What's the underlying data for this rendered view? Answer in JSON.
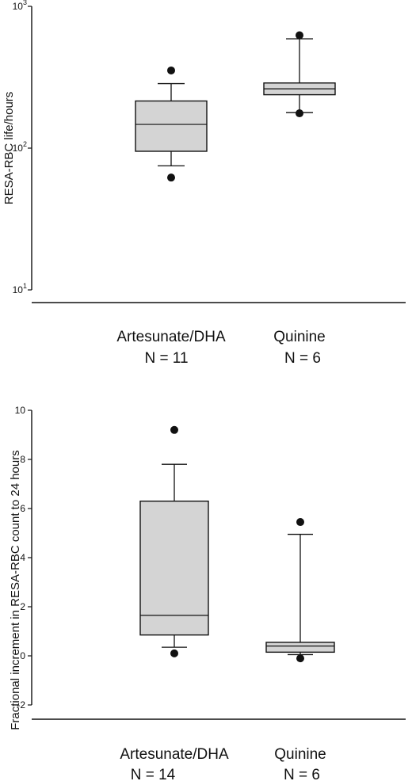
{
  "chart_data": [
    {
      "type": "box",
      "ylabel": "RESA-RBC life/hours",
      "yscale": "log",
      "ylim": [
        10,
        1000
      ],
      "yticks": [
        {
          "value": 10,
          "base": "10",
          "exp": "1"
        },
        {
          "value": 100,
          "base": "10",
          "exp": "2"
        },
        {
          "value": 1000,
          "base": "10",
          "exp": "3"
        }
      ],
      "groups": [
        {
          "name": "Artesunate/DHA",
          "n_label": "N = 11",
          "min": 75,
          "q1": 95,
          "median": 147,
          "q3": 215,
          "max": 285,
          "outliers": [
            353,
            62
          ]
        },
        {
          "name": "Quinine",
          "n_label": "N = 6",
          "min": 178,
          "q1": 238,
          "median": 262,
          "q3": 288,
          "max": 590,
          "outliers": [
            625,
            176
          ]
        }
      ]
    },
    {
      "type": "box",
      "ylabel": "Fractional increment in RESA-RBC count to 24 hours",
      "yscale": "linear",
      "ylim": [
        -2,
        10
      ],
      "yticks": [
        {
          "value": -2,
          "label": "-2"
        },
        {
          "value": 0,
          "label": "0"
        },
        {
          "value": 2,
          "label": "2"
        },
        {
          "value": 4,
          "label": "4"
        },
        {
          "value": 6,
          "label": "6"
        },
        {
          "value": 8,
          "label": "8"
        },
        {
          "value": 10,
          "label": "10"
        }
      ],
      "groups": [
        {
          "name": "Artesunate/DHA",
          "n_label": "N = 14",
          "min": 0.35,
          "q1": 0.85,
          "median": 1.65,
          "q3": 6.3,
          "max": 7.8,
          "outliers": [
            9.2,
            0.1
          ]
        },
        {
          "name": "Quinine",
          "n_label": "N = 6",
          "min": 0.05,
          "q1": 0.15,
          "median": 0.4,
          "q3": 0.55,
          "max": 4.95,
          "outliers": [
            5.45,
            -0.1
          ]
        }
      ]
    }
  ],
  "colors": {
    "box_fill": "#d4d4d4",
    "ink": "#111111"
  }
}
